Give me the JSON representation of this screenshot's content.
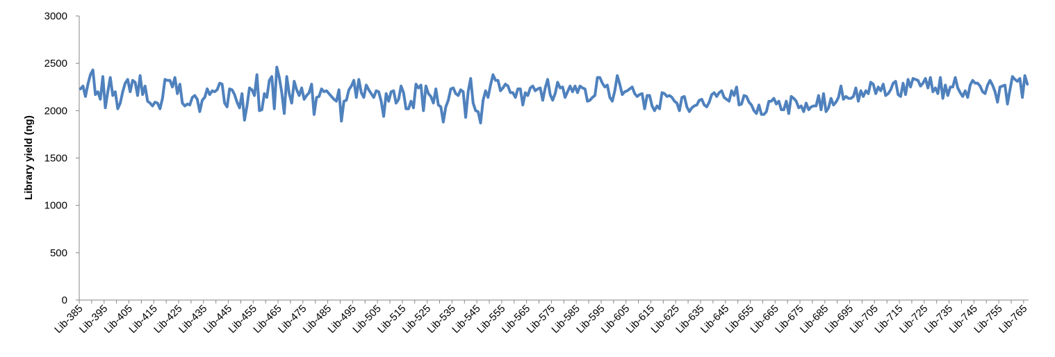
{
  "chart_data": {
    "type": "line",
    "title": "",
    "xlabel": "",
    "ylabel": "Library yield (ng)",
    "ylim": [
      0,
      3000
    ],
    "yticks": [
      0,
      500,
      1000,
      1500,
      2000,
      2500,
      3000
    ],
    "grid": false,
    "legend": "none",
    "line_color": "#4F81BD",
    "x_label_prefix": "Lib-",
    "x_start": 385,
    "x_tick_labels": [
      "Lib-385",
      "Lib-395",
      "Lib-405",
      "Lib-415",
      "Lib-425",
      "Lib-435",
      "Lib-445",
      "Lib-455",
      "Lib-465",
      "Lib-475",
      "Lib-485",
      "Lib-495",
      "Lib-505",
      "Lib-515",
      "Lib-525",
      "Lib-535",
      "Lib-545",
      "Lib-555",
      "Lib-565",
      "Lib-575",
      "Lib-585",
      "Lib-595",
      "Lib-605",
      "Lib-615",
      "Lib-625",
      "Lib-635",
      "Lib-645",
      "Lib-655",
      "Lib-665",
      "Lib-675",
      "Lib-685",
      "Lib-695",
      "Lib-705",
      "Lib-715",
      "Lib-725",
      "Lib-735",
      "Lib-745",
      "Lib-755",
      "Lib-765"
    ],
    "series": [
      {
        "values": [
          2230,
          2260,
          2150,
          2280,
          2380,
          2430,
          2170,
          2200,
          2120,
          2360,
          2030,
          2200,
          2350,
          2160,
          2200,
          2020,
          2080,
          2200,
          2290,
          2330,
          2200,
          2320,
          2300,
          2160,
          2370,
          2170,
          2260,
          2100,
          2080,
          2050,
          2090,
          2080,
          2020,
          2130,
          2330,
          2320,
          2320,
          2250,
          2350,
          2180,
          2280,
          2080,
          2050,
          2070,
          2060,
          2140,
          2160,
          2120,
          1990,
          2110,
          2140,
          2230,
          2170,
          2210,
          2200,
          2220,
          2290,
          2280,
          2080,
          2040,
          2230,
          2220,
          2170,
          2090,
          2030,
          2180,
          1900,
          2050,
          2240,
          2220,
          2160,
          2380,
          2000,
          2010,
          2180,
          2140,
          2320,
          2360,
          2020,
          2460,
          2350,
          2190,
          1970,
          2360,
          2180,
          2080,
          2310,
          2220,
          2160,
          2240,
          2120,
          2160,
          2190,
          2280,
          1960,
          2140,
          2150,
          2230,
          2200,
          2210,
          2180,
          2150,
          2120,
          2100,
          2220,
          1890,
          2100,
          2110,
          2220,
          2260,
          2320,
          2140,
          2330,
          2190,
          2140,
          2270,
          2220,
          2180,
          2140,
          2210,
          2200,
          2100,
          1940,
          2180,
          2100,
          2200,
          2210,
          2080,
          2120,
          2260,
          2190,
          2020,
          2020,
          2100,
          2030,
          2280,
          2240,
          2270,
          2000,
          2260,
          2180,
          2150,
          2080,
          2230,
          2060,
          2040,
          1880,
          2040,
          2110,
          2230,
          2240,
          2180,
          2160,
          2220,
          2200,
          1930,
          2200,
          2340,
          2080,
          2000,
          1990,
          1870,
          2110,
          2210,
          2140,
          2270,
          2380,
          2320,
          2320,
          2210,
          2240,
          2280,
          2260,
          2190,
          2190,
          2140,
          2230,
          2230,
          2060,
          2190,
          2160,
          2240,
          2260,
          2210,
          2230,
          2240,
          2110,
          2240,
          2330,
          2170,
          2110,
          2180,
          2300,
          2240,
          2250,
          2140,
          2200,
          2260,
          2200,
          2260,
          2190,
          2260,
          2240,
          2230,
          2100,
          2110,
          2140,
          2160,
          2350,
          2350,
          2290,
          2250,
          2270,
          2140,
          2100,
          2210,
          2370,
          2280,
          2170,
          2200,
          2210,
          2230,
          2250,
          2180,
          2150,
          2170,
          2180,
          2020,
          2160,
          2160,
          2050,
          2000,
          2050,
          2020,
          2190,
          2180,
          2150,
          2160,
          2140,
          2100,
          2080,
          2000,
          2140,
          2150,
          2040,
          1990,
          2030,
          2050,
          2060,
          2110,
          2120,
          2060,
          2040,
          2090,
          2170,
          2190,
          2150,
          2190,
          2210,
          2140,
          2120,
          2100,
          2210,
          2160,
          2250,
          2060,
          2070,
          2160,
          2150,
          2090,
          2060,
          2000,
          1970,
          2060,
          1960,
          1960,
          1990,
          2100,
          2100,
          2130,
          2070,
          2100,
          2010,
          2010,
          2100,
          1970,
          2150,
          2130,
          2100,
          2030,
          2050,
          1990,
          2080,
          2010,
          2040,
          2050,
          2050,
          2160,
          2010,
          2180,
          1990,
          2030,
          2130,
          2060,
          2090,
          2140,
          2260,
          2120,
          2150,
          2130,
          2130,
          2150,
          2240,
          2100,
          2210,
          2150,
          2210,
          2180,
          2300,
          2280,
          2180,
          2250,
          2210,
          2280,
          2160,
          2180,
          2220,
          2290,
          2310,
          2170,
          2150,
          2290,
          2170,
          2330,
          2250,
          2340,
          2330,
          2320,
          2260,
          2290,
          2340,
          2240,
          2350,
          2200,
          2240,
          2180,
          2350,
          2130,
          2270,
          2160,
          2250,
          2250,
          2350,
          2240,
          2190,
          2150,
          2210,
          2140,
          2270,
          2320,
          2290,
          2290,
          2260,
          2200,
          2180,
          2270,
          2320,
          2270,
          2200,
          2090,
          2250,
          2260,
          2270,
          2070,
          2220,
          2360,
          2330,
          2310,
          2340,
          2140,
          2370,
          2280
        ]
      }
    ]
  }
}
